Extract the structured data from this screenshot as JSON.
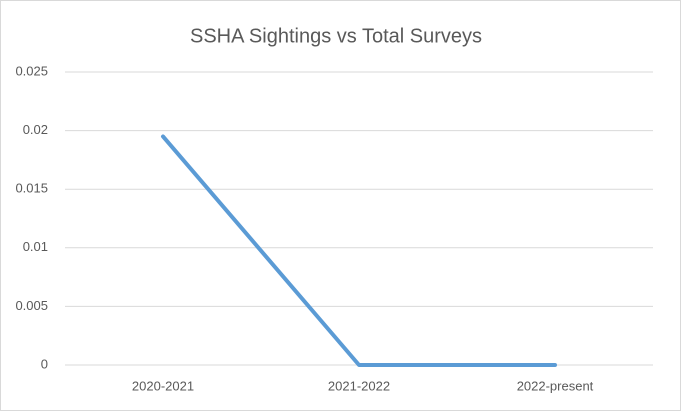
{
  "chart_data": {
    "type": "line",
    "title": "SSHA Sightings vs Total Surveys",
    "categories": [
      "2020-2021",
      "2021-2022",
      "2022-present"
    ],
    "series": [
      {
        "name": "SSHA Sightings vs Total Surveys",
        "color": "#5b9bd5",
        "values": [
          0.0195,
          0,
          0
        ]
      }
    ],
    "ylim": [
      0,
      0.025
    ],
    "yticks": [
      0,
      0.005,
      0.01,
      0.015,
      0.02,
      0.025
    ],
    "grid": true
  }
}
